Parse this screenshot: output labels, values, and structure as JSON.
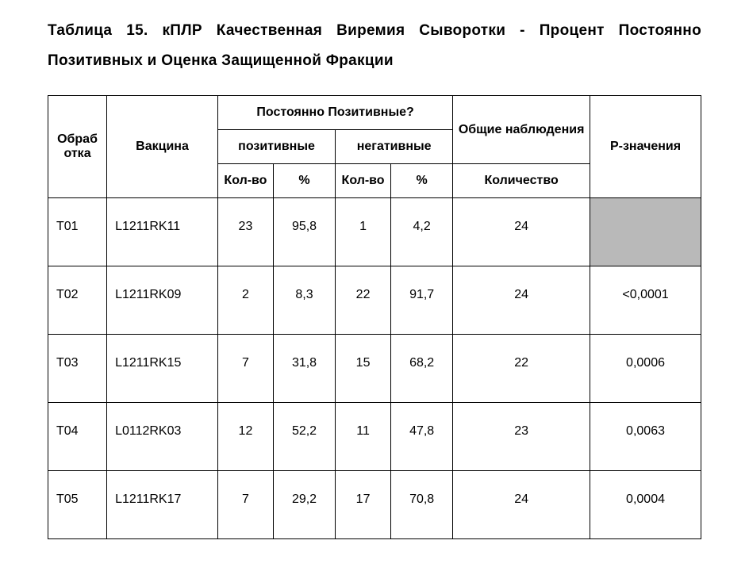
{
  "title_line1": "Таблица 15. кПЛР Качественная Виремия Сыворотки - Процент Постоянно",
  "title_line2": "Позитивных и Оценка Защищенной Фракции",
  "headers": {
    "treatment": "Обраб отка",
    "vaccine": "Вакцина",
    "persistent_positive": "Постоянно Позитивные?",
    "positive": "позитивные",
    "negative": "негативные",
    "total_obs": "Общие наблюдения",
    "count": "Кол-во",
    "percent": "%",
    "qty": "Количество",
    "pvalues": "Р-значения"
  },
  "rows": [
    {
      "treatment": "T01",
      "vaccine": "L1211RK11",
      "pos_count": "23",
      "pos_pct": "95,8",
      "neg_count": "1",
      "neg_pct": "4,2",
      "total": "24",
      "pvalue": "",
      "shaded": true
    },
    {
      "treatment": "T02",
      "vaccine": "L1211RK09",
      "pos_count": "2",
      "pos_pct": "8,3",
      "neg_count": "22",
      "neg_pct": "91,7",
      "total": "24",
      "pvalue": "<0,0001",
      "shaded": false
    },
    {
      "treatment": "T03",
      "vaccine": "L1211RK15",
      "pos_count": "7",
      "pos_pct": "31,8",
      "neg_count": "15",
      "neg_pct": "68,2",
      "total": "22",
      "pvalue": "0,0006",
      "shaded": false
    },
    {
      "treatment": "T04",
      "vaccine": "L0112RK03",
      "pos_count": "12",
      "pos_pct": "52,2",
      "neg_count": "11",
      "neg_pct": "47,8",
      "total": "23",
      "pvalue": "0,0063",
      "shaded": false
    },
    {
      "treatment": "T05",
      "vaccine": "L1211RK17",
      "pos_count": "7",
      "pos_pct": "29,2",
      "neg_count": "17",
      "neg_pct": "70,8",
      "total": "24",
      "pvalue": "0,0004",
      "shaded": false
    }
  ]
}
